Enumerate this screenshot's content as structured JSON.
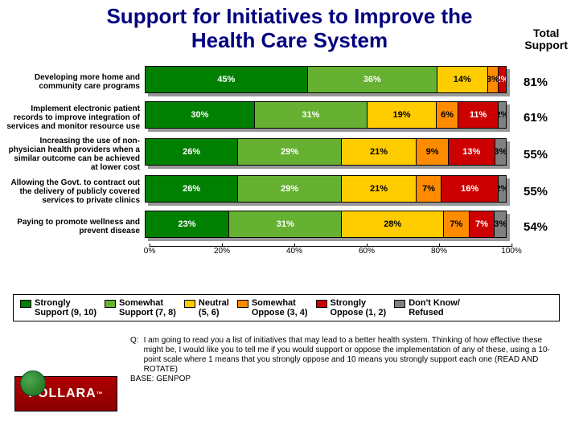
{
  "title_line1": "Support for Initiatives to Improve the",
  "title_line2": "Health Care System",
  "total_header_line1": "Total",
  "total_header_line2": "Support",
  "chart": {
    "type": "stacked-bar-horizontal",
    "xlim": [
      0,
      100
    ],
    "ticks": [
      "0%",
      "20%",
      "40%",
      "60%",
      "80%",
      "100%"
    ],
    "segment_colors": [
      "#008000",
      "#66b032",
      "#ffcc00",
      "#ff8c00",
      "#cc0000",
      "#808080"
    ],
    "segment_text_colors": [
      "#ffffff",
      "#ffffff",
      "#000000",
      "#000000",
      "#ffffff",
      "#000000"
    ],
    "rows": [
      {
        "label": "Developing more home and community care programs",
        "values": [
          45,
          36,
          14,
          3,
          2,
          0
        ],
        "total": "81%",
        "labels": [
          "45%",
          "36%",
          "14%",
          "3%",
          "2%",
          ""
        ]
      },
      {
        "label": "Implement electronic patient records to improve integration of services and monitor resource use",
        "values": [
          30,
          31,
          19,
          6,
          11,
          2
        ],
        "total": "61%",
        "labels": [
          "30%",
          "31%",
          "19%",
          "6%",
          "11%",
          "2%"
        ]
      },
      {
        "label": "Increasing the use of non-physician health providers when a similar outcome can be achieved at lower cost",
        "values": [
          26,
          29,
          21,
          9,
          13,
          3
        ],
        "total": "55%",
        "labels": [
          "26%",
          "29%",
          "21%",
          "9%",
          "13%",
          "3%"
        ]
      },
      {
        "label": "Allowing the Govt. to contract out the delivery of publicly covered services to private clinics",
        "values": [
          26,
          29,
          21,
          7,
          16,
          2
        ],
        "total": "55%",
        "labels": [
          "26%",
          "29%",
          "21%",
          "7%",
          "16%",
          "2%"
        ]
      },
      {
        "label": "Paying to promote wellness and prevent disease",
        "values": [
          23,
          31,
          28,
          7,
          7,
          3
        ],
        "total": "54%",
        "labels": [
          "23%",
          "31%",
          "28%",
          "7%",
          "7%",
          "3%"
        ]
      }
    ]
  },
  "legend": [
    {
      "label_l1": "Strongly",
      "label_l2": "Support (9, 10)",
      "color": "#008000"
    },
    {
      "label_l1": "Somewhat",
      "label_l2": "Support (7, 8)",
      "color": "#66b032"
    },
    {
      "label_l1": "Neutral",
      "label_l2": "(5, 6)",
      "color": "#ffcc00"
    },
    {
      "label_l1": "Somewhat",
      "label_l2": "Oppose (3, 4)",
      "color": "#ff8c00"
    },
    {
      "label_l1": "Strongly",
      "label_l2": "Oppose (1, 2)",
      "color": "#cc0000"
    },
    {
      "label_l1": "Don't Know/",
      "label_l2": "Refused",
      "color": "#808080"
    }
  ],
  "footnote": {
    "q_label": "Q:",
    "q_text": "I am going to read you a list of initiatives that may lead to a better health system. Thinking of how effective these might be, I would like you to tell me if you would support or oppose the implementation of any of these, using a 10-point scale where 1 means that you strongly oppose and 10 means you strongly support each one (READ AND ROTATE)",
    "base": "BASE: GENPOP"
  },
  "logo_text": "POLLARA",
  "logo_tm": "™"
}
